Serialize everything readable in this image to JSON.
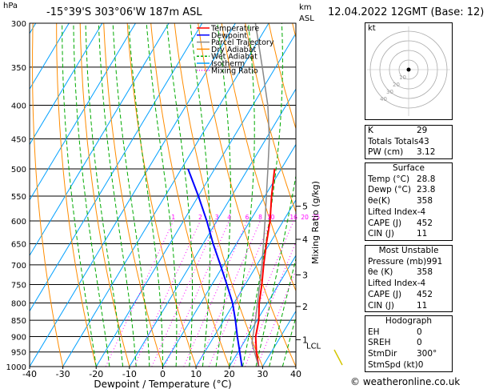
{
  "header": {
    "pressure_unit": "hPa",
    "location": "-15°39'S  303°06'W  187m  ASL",
    "height_unit": "km",
    "height_unit2": "ASL",
    "datetime": "12.04.2022  12GMT  (Base: 12)"
  },
  "footer": {
    "copyright": "© weatheronline.co.uk"
  },
  "hodograph": {
    "label": "kt",
    "ring_labels": [
      "10",
      "20",
      "30",
      "40"
    ]
  },
  "indices": [
    {
      "label": "K",
      "value": "29"
    },
    {
      "label": "Totals Totals",
      "value": "43"
    },
    {
      "label": "PW (cm)",
      "value": "3.12"
    }
  ],
  "surface": {
    "title": "Surface",
    "rows": [
      {
        "label": "Temp (°C)",
        "value": "28.8"
      },
      {
        "label": "Dewp (°C)",
        "value": "23.8"
      },
      {
        "label": "θe(K)",
        "value": "358"
      },
      {
        "label": "Lifted Index",
        "value": "-4"
      },
      {
        "label": "CAPE (J)",
        "value": "452"
      },
      {
        "label": "CIN (J)",
        "value": "11"
      }
    ]
  },
  "most_unstable": {
    "title": "Most Unstable",
    "rows": [
      {
        "label": "Pressure (mb)",
        "value": "991"
      },
      {
        "label": "θe (K)",
        "value": "358"
      },
      {
        "label": "Lifted Index",
        "value": "-4"
      },
      {
        "label": "CAPE (J)",
        "value": "452"
      },
      {
        "label": "CIN (J)",
        "value": "11"
      }
    ]
  },
  "hodograph_table": {
    "title": "Hodograph",
    "rows": [
      {
        "label": "EH",
        "value": "0"
      },
      {
        "label": "SREH",
        "value": "0"
      },
      {
        "label": "StmDir",
        "value": "300°"
      },
      {
        "label": "StmSpd (kt)",
        "value": "0"
      }
    ]
  },
  "chart_data": {
    "type": "line",
    "subtype": "skew-T log-p diagram",
    "xlabel": "Dewpoint / Temperature (°C)",
    "ylabel_left": "hPa",
    "ylabel_right": "Mixing Ratio (g/kg)",
    "x_ticks": [
      -40,
      -30,
      -20,
      -10,
      0,
      10,
      20,
      30,
      40
    ],
    "xlim": [
      -40,
      40
    ],
    "pressure_ticks": [
      300,
      350,
      400,
      450,
      500,
      550,
      600,
      650,
      700,
      750,
      800,
      850,
      900,
      950,
      1000
    ],
    "ylim": [
      1000,
      300
    ],
    "height_ticks": [
      {
        "km": "1",
        "p": 910
      },
      {
        "km": "2",
        "p": 810
      },
      {
        "km": "3",
        "p": 725
      },
      {
        "km": "4",
        "p": 640
      },
      {
        "km": "5",
        "p": 570
      }
    ],
    "lcl": {
      "label": "LCL",
      "p": 920
    },
    "mixing_ratio_labels": [
      "1",
      "2",
      "3",
      "4",
      "6",
      "8",
      "10",
      "16",
      "20",
      "25"
    ],
    "mixing_ratio_label_p": 600,
    "legend": [
      {
        "name": "Temperature",
        "color": "#ff0000"
      },
      {
        "name": "Dewpoint",
        "color": "#0000ff"
      },
      {
        "name": "Parcel Trajectory",
        "color": "#888888"
      },
      {
        "name": "Dry Adiabat",
        "color": "#ff8c00"
      },
      {
        "name": "Wet Adiabat",
        "color": "#00aa00"
      },
      {
        "name": "Isotherm",
        "color": "#00a0ff"
      },
      {
        "name": "Mixing Ratio",
        "color": "#ff00ff"
      }
    ],
    "series": [
      {
        "name": "Temperature",
        "color": "#ff0000",
        "points": [
          [
            1000,
            28.8
          ],
          [
            950,
            25.5
          ],
          [
            900,
            22.5
          ],
          [
            850,
            20.5
          ],
          [
            800,
            17.5
          ],
          [
            750,
            15.0
          ],
          [
            700,
            12.0
          ],
          [
            650,
            9.0
          ],
          [
            600,
            6.0
          ],
          [
            550,
            2.0
          ],
          [
            500,
            -2.0
          ]
        ]
      },
      {
        "name": "Dewpoint",
        "color": "#0000ff",
        "points": [
          [
            1000,
            23.8
          ],
          [
            950,
            20.5
          ],
          [
            900,
            17.0
          ],
          [
            850,
            13.5
          ],
          [
            800,
            9.5
          ],
          [
            750,
            4.5
          ],
          [
            700,
            -1.0
          ],
          [
            650,
            -7.0
          ],
          [
            600,
            -13.0
          ],
          [
            550,
            -20.0
          ],
          [
            500,
            -28.0
          ]
        ]
      },
      {
        "name": "Parcel Trajectory",
        "color": "#888888",
        "points": [
          [
            1000,
            28.8
          ],
          [
            920,
            22.5
          ],
          [
            850,
            19.5
          ],
          [
            800,
            17.0
          ],
          [
            700,
            11.5
          ],
          [
            600,
            4.5
          ],
          [
            500,
            -4.0
          ],
          [
            450,
            -9.0
          ],
          [
            400,
            -15.5
          ],
          [
            350,
            -24.0
          ],
          [
            300,
            -34.0
          ]
        ]
      }
    ]
  }
}
